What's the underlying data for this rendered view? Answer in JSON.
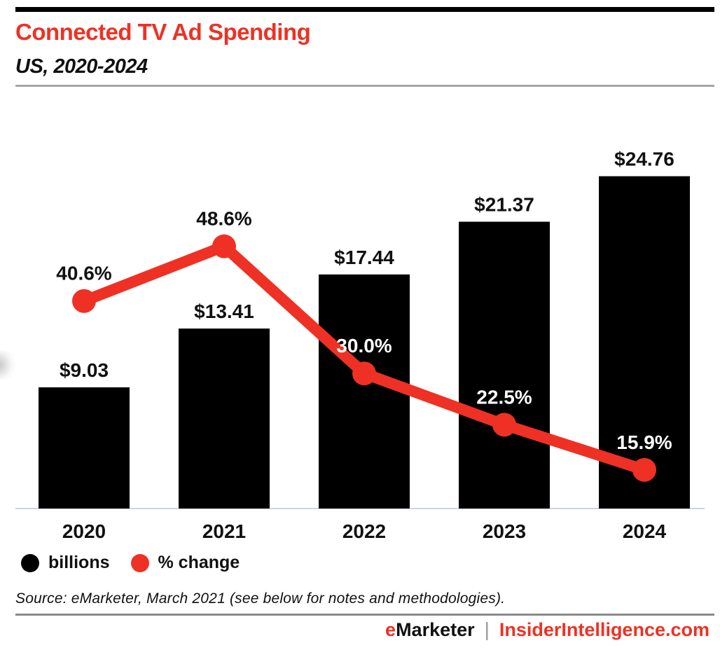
{
  "page": {
    "title": "Connected TV Ad Spending",
    "subtitle": "US, 2020-2024",
    "source": "Source: eMarketer, March 2021 (see below for notes and methodologies).",
    "footer": {
      "brand_e": "e",
      "brand_rest": "Marketer",
      "separator": "|",
      "site": "InsiderIntelligence.com"
    }
  },
  "colors": {
    "accent_red": "#EE3124",
    "bar_black": "#000000",
    "baseline_gray": "#ccd4e0",
    "header_divider": "#a6a6a6",
    "footer_divider": "#8a8a8a"
  },
  "legend": {
    "items": [
      {
        "label": "billions",
        "color": "#000000"
      },
      {
        "label": "% change",
        "color": "#EE3124"
      }
    ]
  },
  "chart_data": {
    "type": "bar",
    "subtype": "bar+line combo",
    "title": "Connected TV Ad Spending",
    "xlabel": "",
    "ylabel": "",
    "categories": [
      "2020",
      "2021",
      "2022",
      "2023",
      "2024"
    ],
    "series": [
      {
        "name": "billions",
        "type": "bar",
        "color": "#000000",
        "values": [
          9.03,
          13.41,
          17.44,
          21.37,
          24.76
        ],
        "labels": [
          "$9.03",
          "$13.41",
          "$17.44",
          "$21.37",
          "$24.76"
        ],
        "label_color": "#111111"
      },
      {
        "name": "% change",
        "type": "line",
        "color": "#EE3124",
        "values": [
          40.6,
          48.6,
          30.0,
          22.5,
          15.9
        ],
        "labels": [
          "40.6%",
          "48.6%",
          "30.0%",
          "22.5%",
          "15.9%"
        ],
        "label_colors": [
          "#111111",
          "#111111",
          "#ffffff",
          "#ffffff",
          "#ffffff"
        ]
      }
    ],
    "grid": false,
    "legend_position": "bottom-left",
    "axis": {
      "baseline_color": "#ccd4e0"
    }
  }
}
